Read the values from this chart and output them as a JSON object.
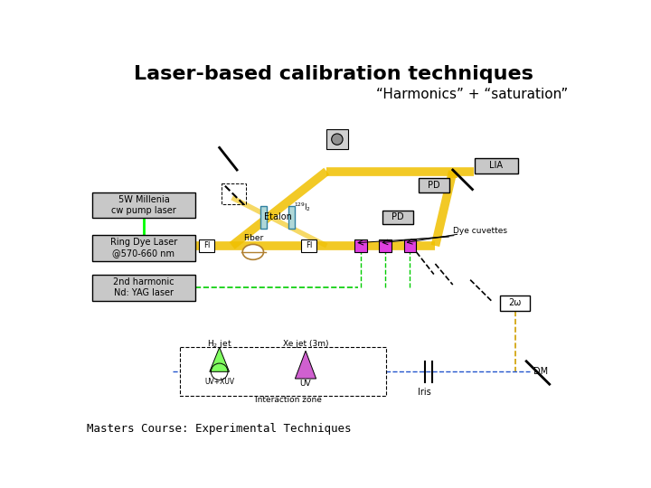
{
  "title": "Laser-based calibration techniques",
  "subtitle": "“Harmonics” + “saturation”",
  "footer": "Masters Course: Experimental Techniques",
  "bg_color": "#ffffff",
  "title_fontsize": 16,
  "subtitle_fontsize": 11,
  "footer_fontsize": 9
}
